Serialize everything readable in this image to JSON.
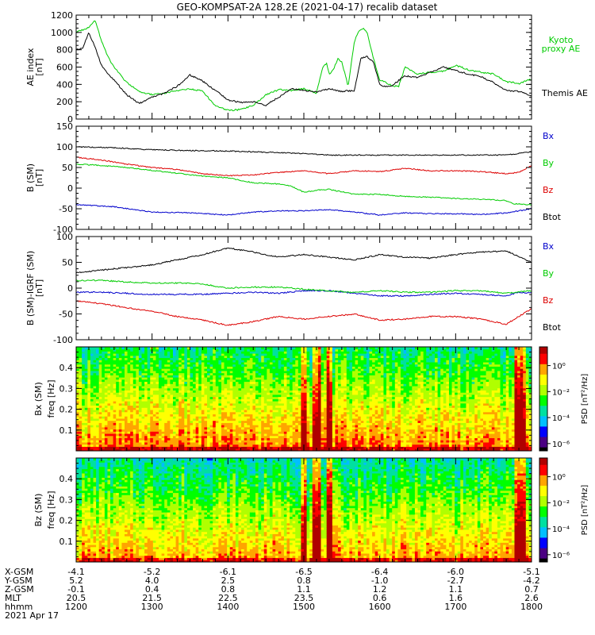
{
  "title": "GEO-KOMPSAT-2A 128.2E (2021-04-17) recalib dataset",
  "chart_data": [
    {
      "id": "ae",
      "type": "line",
      "ylabel": "AE index",
      "yunit": "[nT]",
      "ylim": [
        0,
        1200
      ],
      "yticks": [
        0,
        200,
        400,
        600,
        800,
        1000,
        1200
      ],
      "series": [
        {
          "name": "Kyoto proxy AE",
          "color": "#00cc00",
          "x": [
            1200,
            1205,
            1210,
            1215,
            1220,
            1225,
            1230,
            1240,
            1250,
            1300,
            1310,
            1320,
            1330,
            1340,
            1350,
            1400,
            1410,
            1420,
            1430,
            1440,
            1450,
            1500,
            1510,
            1512,
            1515,
            1518,
            1520,
            1523,
            1527,
            1530,
            1535,
            1540,
            1543,
            1547,
            1550,
            1555,
            1600,
            1605,
            1610,
            1615,
            1620,
            1630,
            1640,
            1650,
            1700,
            1710,
            1720,
            1730,
            1740,
            1750,
            1800
          ],
          "values": [
            1000,
            1030,
            1060,
            1140,
            900,
            720,
            600,
            420,
            320,
            280,
            300,
            330,
            350,
            320,
            150,
            100,
            110,
            160,
            280,
            340,
            330,
            350,
            300,
            420,
            600,
            640,
            520,
            560,
            700,
            660,
            380,
            900,
            1010,
            1050,
            1000,
            700,
            450,
            420,
            380,
            380,
            600,
            520,
            540,
            550,
            620,
            570,
            540,
            520,
            430,
            410,
            460
          ]
        },
        {
          "name": "Themis AE",
          "color": "#000000",
          "x": [
            1200,
            1205,
            1210,
            1215,
            1220,
            1225,
            1230,
            1240,
            1250,
            1300,
            1310,
            1320,
            1330,
            1340,
            1350,
            1400,
            1410,
            1420,
            1430,
            1440,
            1450,
            1500,
            1510,
            1520,
            1530,
            1540,
            1545,
            1550,
            1555,
            1600,
            1605,
            1610,
            1620,
            1630,
            1640,
            1650,
            1700,
            1710,
            1720,
            1730,
            1740,
            1750,
            1800
          ],
          "values": [
            800,
            820,
            1000,
            830,
            620,
            520,
            450,
            280,
            180,
            250,
            300,
            380,
            510,
            440,
            330,
            220,
            190,
            200,
            160,
            250,
            350,
            330,
            310,
            350,
            320,
            330,
            700,
            720,
            660,
            400,
            370,
            390,
            500,
            480,
            540,
            600,
            560,
            520,
            490,
            420,
            330,
            320,
            270
          ]
        }
      ]
    },
    {
      "id": "bsm",
      "type": "line",
      "ylabel": "B (SM)",
      "yunit": "[nT]",
      "ylim": [
        -100,
        150
      ],
      "yticks": [
        -100,
        -50,
        0,
        50,
        100,
        150
      ],
      "series": [
        {
          "name": "Bx",
          "color": "#0000cc",
          "x": [
            1200,
            1230,
            1300,
            1330,
            1400,
            1420,
            1440,
            1500,
            1520,
            1540,
            1600,
            1620,
            1640,
            1700,
            1720,
            1740,
            1800
          ],
          "values": [
            -40,
            -45,
            -58,
            -60,
            -65,
            -58,
            -55,
            -55,
            -52,
            -58,
            -65,
            -60,
            -62,
            -62,
            -64,
            -60,
            -50
          ]
        },
        {
          "name": "By",
          "color": "#00cc00",
          "x": [
            1200,
            1220,
            1240,
            1300,
            1320,
            1340,
            1400,
            1420,
            1440,
            1450,
            1500,
            1510,
            1520,
            1540,
            1600,
            1610,
            1620,
            1640,
            1700,
            1720,
            1740,
            1745,
            1800
          ],
          "values": [
            58,
            55,
            50,
            43,
            36,
            29,
            25,
            13,
            10,
            5,
            -10,
            -5,
            -3,
            -15,
            -15,
            -18,
            -20,
            -22,
            -25,
            -27,
            -30,
            -38,
            -40
          ]
        },
        {
          "name": "Bz",
          "color": "#dd0000",
          "x": [
            1200,
            1220,
            1240,
            1300,
            1320,
            1340,
            1400,
            1420,
            1440,
            1500,
            1520,
            1540,
            1600,
            1620,
            1640,
            1700,
            1720,
            1740,
            1750,
            1800
          ],
          "values": [
            75,
            68,
            58,
            50,
            45,
            35,
            30,
            32,
            38,
            42,
            35,
            42,
            40,
            48,
            42,
            42,
            40,
            35,
            38,
            55
          ]
        },
        {
          "name": "Btot",
          "color": "#000000",
          "x": [
            1200,
            1230,
            1300,
            1330,
            1400,
            1420,
            1440,
            1500,
            1520,
            1540,
            1600,
            1620,
            1640,
            1700,
            1720,
            1740,
            1800
          ],
          "values": [
            100,
            98,
            93,
            91,
            90,
            88,
            86,
            84,
            80,
            80,
            80,
            80,
            80,
            80,
            80,
            80,
            88
          ]
        }
      ]
    },
    {
      "id": "bsmigrf",
      "type": "line",
      "ylabel": "B (SM)-IGRF (SM)",
      "yunit": "[nT]",
      "ylim": [
        -100,
        100
      ],
      "yticks": [
        -100,
        -50,
        0,
        50,
        100
      ],
      "series": [
        {
          "name": "Bx",
          "color": "#0000cc",
          "x": [
            1200,
            1220,
            1240,
            1300,
            1320,
            1340,
            1400,
            1420,
            1440,
            1500,
            1520,
            1540,
            1600,
            1620,
            1640,
            1700,
            1720,
            1740,
            1750,
            1800
          ],
          "values": [
            -8,
            -8,
            -10,
            -12,
            -12,
            -12,
            -10,
            -8,
            -10,
            -5,
            -5,
            -10,
            -15,
            -15,
            -12,
            -10,
            -12,
            -15,
            -8,
            -10
          ]
        },
        {
          "name": "By",
          "color": "#00cc00",
          "x": [
            1200,
            1220,
            1240,
            1300,
            1320,
            1340,
            1400,
            1420,
            1440,
            1500,
            1520,
            1540,
            1600,
            1620,
            1640,
            1700,
            1720,
            1740,
            1800
          ],
          "values": [
            15,
            15,
            12,
            10,
            10,
            8,
            0,
            2,
            2,
            -2,
            -5,
            -8,
            -5,
            -8,
            -8,
            -5,
            -5,
            -10,
            -5
          ]
        },
        {
          "name": "Bz",
          "color": "#dd0000",
          "x": [
            1200,
            1220,
            1240,
            1300,
            1320,
            1340,
            1400,
            1420,
            1440,
            1500,
            1520,
            1540,
            1600,
            1620,
            1640,
            1700,
            1720,
            1740,
            1800
          ],
          "values": [
            -25,
            -30,
            -38,
            -45,
            -55,
            -62,
            -72,
            -65,
            -55,
            -60,
            -55,
            -50,
            -62,
            -60,
            -55,
            -55,
            -60,
            -70,
            -40
          ]
        },
        {
          "name": "Btot",
          "color": "#000000",
          "x": [
            1200,
            1220,
            1240,
            1300,
            1320,
            1340,
            1400,
            1420,
            1440,
            1500,
            1520,
            1540,
            1600,
            1620,
            1640,
            1700,
            1720,
            1740,
            1800
          ],
          "values": [
            30,
            35,
            40,
            45,
            55,
            65,
            78,
            70,
            60,
            65,
            60,
            55,
            65,
            60,
            58,
            65,
            70,
            72,
            50
          ]
        }
      ]
    },
    {
      "id": "bxspec",
      "type": "heatmap",
      "ylabel": "Bx (SM)",
      "ylabel2": "freq",
      "yunit": "[Hz]",
      "ylim": [
        0,
        0.5
      ],
      "yticks": [
        0.1,
        0.2,
        0.3,
        0.4
      ],
      "colorbar_label": "PSD [nT²/Hz]",
      "colorbar_ticks": [
        "10⁰",
        "10⁻²",
        "10⁻⁴",
        "10⁻⁶"
      ],
      "bright_columns_hhmm": [
        1500,
        1510,
        1520,
        1750,
        1753
      ],
      "colormap": [
        "#000000",
        "#4b0082",
        "#0000ff",
        "#00bfff",
        "#00e0a0",
        "#00ff00",
        "#b0ff00",
        "#ffff00",
        "#ffa500",
        "#ff0000",
        "#b00000"
      ]
    },
    {
      "id": "bzspec",
      "type": "heatmap",
      "ylabel": "Bz (SM)",
      "ylabel2": "freq",
      "yunit": "[Hz]",
      "ylim": [
        0,
        0.5
      ],
      "yticks": [
        0.1,
        0.2,
        0.3,
        0.4
      ],
      "colorbar_label": "PSD [nT²/Hz]",
      "colorbar_ticks": [
        "10⁰",
        "10⁻²",
        "10⁻⁴",
        "10⁻⁶"
      ],
      "bright_columns_hhmm": [
        1500,
        1510,
        1520,
        1750,
        1753
      ],
      "colormap": [
        "#000000",
        "#4b0082",
        "#0000ff",
        "#00bfff",
        "#00e0a0",
        "#00ff00",
        "#b0ff00",
        "#ffff00",
        "#ffa500",
        "#ff0000",
        "#b00000"
      ]
    }
  ],
  "x_axis": {
    "row_labels": [
      "X-GSM",
      "Y-GSM",
      "Z-GSM",
      "MLT",
      "hhmm"
    ],
    "date_label": "2021 Apr 17",
    "hhmm": [
      1200,
      1300,
      1400,
      1500,
      1600,
      1700,
      1800
    ],
    "columns": [
      [
        "-4.1",
        "5.2",
        "-0.1",
        "20.5",
        "1200"
      ],
      [
        "-5.2",
        "4.0",
        "0.4",
        "21.5",
        "1300"
      ],
      [
        "-6.1",
        "2.5",
        "0.8",
        "22.5",
        "1400"
      ],
      [
        "-6.5",
        "0.8",
        "1.1",
        "23.5",
        "1500"
      ],
      [
        "-6.4",
        "-1.0",
        "1.2",
        "0.6",
        "1600"
      ],
      [
        "-6.0",
        "-2.7",
        "1.1",
        "1.6",
        "1700"
      ],
      [
        "-5.1",
        "-4.2",
        "0.7",
        "2.6",
        "1800"
      ]
    ]
  }
}
